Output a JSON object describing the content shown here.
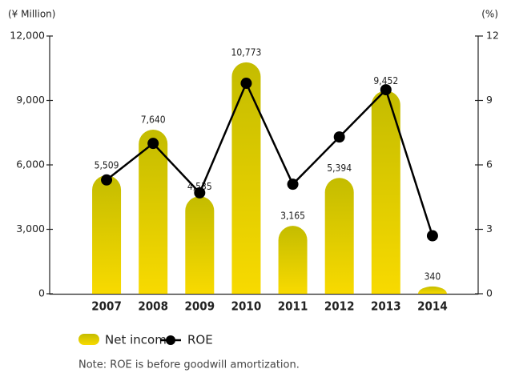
{
  "chart_data": {
    "type": "bar",
    "y_label": "(¥ Million)",
    "y2_label": "(%)",
    "categories": [
      "2007",
      "2008",
      "2009",
      "2010",
      "2011",
      "2012",
      "2013",
      "2014"
    ],
    "series": [
      {
        "name": "Net income",
        "color": "#d4c600",
        "values": [
          5509,
          7640,
          4535,
          10773,
          3165,
          5394,
          9452,
          340
        ],
        "value_labels": [
          "5,509",
          "7,640",
          "4,535",
          "10,773",
          "3,165",
          "5,394",
          "9,452",
          "340"
        ]
      },
      {
        "name": "ROE",
        "type": "line",
        "axis": "y2",
        "color": "#000000",
        "values": [
          5.3,
          7.0,
          4.7,
          9.8,
          5.1,
          7.3,
          9.5,
          2.7
        ]
      }
    ],
    "ylim": [
      0,
      12000
    ],
    "yticks": [
      0,
      {
        "value": 3000,
        "label": "3,000"
      },
      {
        "value": 6000,
        "label": "6,000"
      },
      {
        "value": 9000,
        "label": "9,000"
      },
      {
        "value": 12000,
        "label": "12,000"
      }
    ],
    "y2lim": [
      0,
      12
    ],
    "y2ticks": [
      0,
      3,
      6,
      9,
      12
    ],
    "note": "Note: ROE is before goodwill amortization."
  }
}
